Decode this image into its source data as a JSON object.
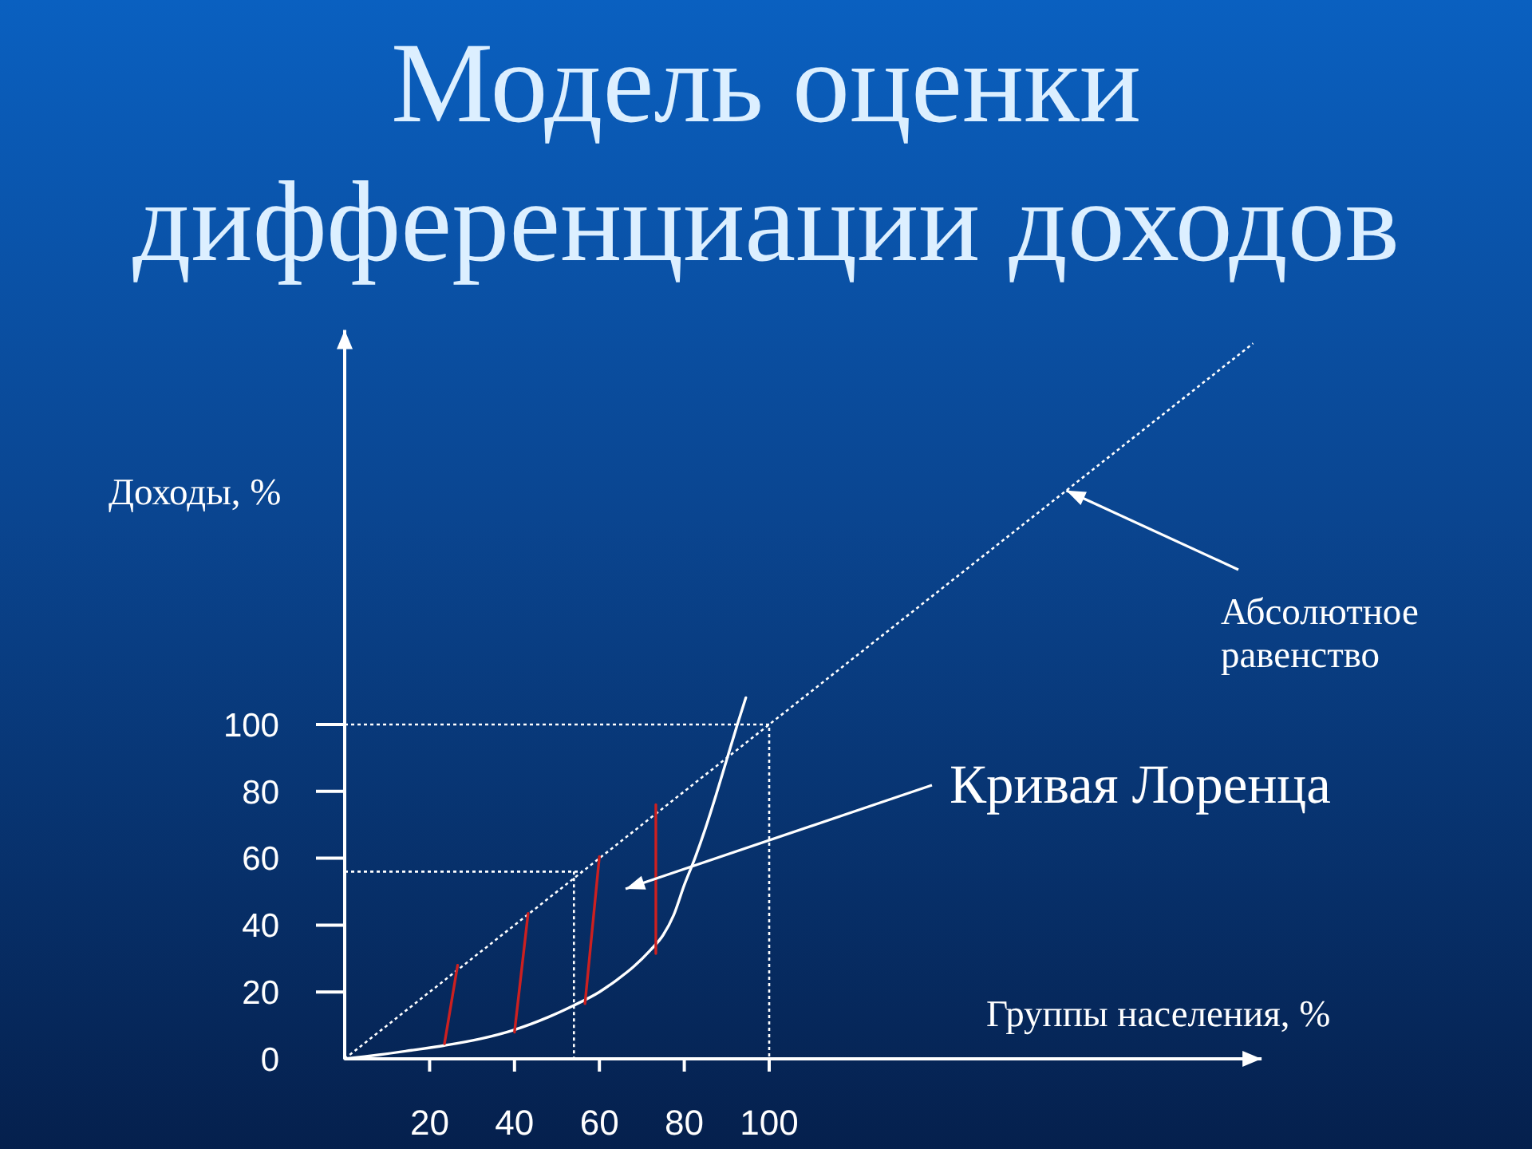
{
  "chart_data": {
    "type": "line",
    "title": "Модель оценки дифференциации доходов",
    "xlabel": "Группы населения, %",
    "ylabel": "Доходы, %",
    "xlim": [
      0,
      216
    ],
    "ylim": [
      0,
      218
    ],
    "xticks": [
      20,
      40,
      60,
      80,
      100
    ],
    "yticks": [
      {
        "value": 0,
        "label": "0"
      },
      20,
      40,
      60,
      80,
      100
    ],
    "series": [
      {
        "color": "#ffffff",
        "line_style": "dotted",
        "x": [
          0,
          214
        ],
        "values": [
          0,
          214
        ]
      },
      {
        "color": "#ffffff",
        "line_style": "solid",
        "x": [
          0,
          8,
          16,
          23.5,
          32,
          40,
          48,
          54,
          60,
          64,
          68,
          72,
          75,
          77.5,
          80,
          82.5,
          85,
          87.5,
          90,
          92.5,
          94.5
        ],
        "values": [
          0,
          1.2,
          2.6,
          4,
          6,
          8.7,
          12.5,
          16,
          20,
          23.5,
          27.5,
          32.5,
          37,
          43,
          52,
          60,
          69,
          79,
          89.5,
          100,
          108
        ]
      },
      {
        "color": "#ffffff",
        "line_style": "dotted",
        "x": [
          0,
          100,
          100
        ],
        "values": [
          100,
          100,
          0
        ]
      },
      {
        "color": "#ffffff",
        "line_style": "dotted",
        "x": [
          0,
          56
        ],
        "values": [
          56,
          56
        ]
      },
      {
        "color": "#ffffff",
        "line_style": "dotted",
        "x": [
          54,
          54
        ],
        "values": [
          56,
          0
        ]
      },
      {
        "color": "#cc2020",
        "line_style": "solid",
        "x": [
          23.5,
          26.6
        ],
        "values": [
          4.5,
          28
        ]
      },
      {
        "color": "#cc2020",
        "line_style": "solid",
        "x": [
          40,
          43.2
        ],
        "values": [
          8,
          43.5
        ]
      },
      {
        "color": "#cc2020",
        "line_style": "solid",
        "x": [
          56.6,
          60
        ],
        "values": [
          16.5,
          60.5
        ]
      },
      {
        "color": "#cc2020",
        "line_style": "solid",
        "x": [
          73.3,
          73.3
        ],
        "values": [
          31.5,
          76
        ]
      }
    ],
    "annotations": [
      {
        "text": "Абсолютное равенство",
        "x": 170,
        "y": 170
      },
      "Кривая Лоренца"
    ]
  }
}
